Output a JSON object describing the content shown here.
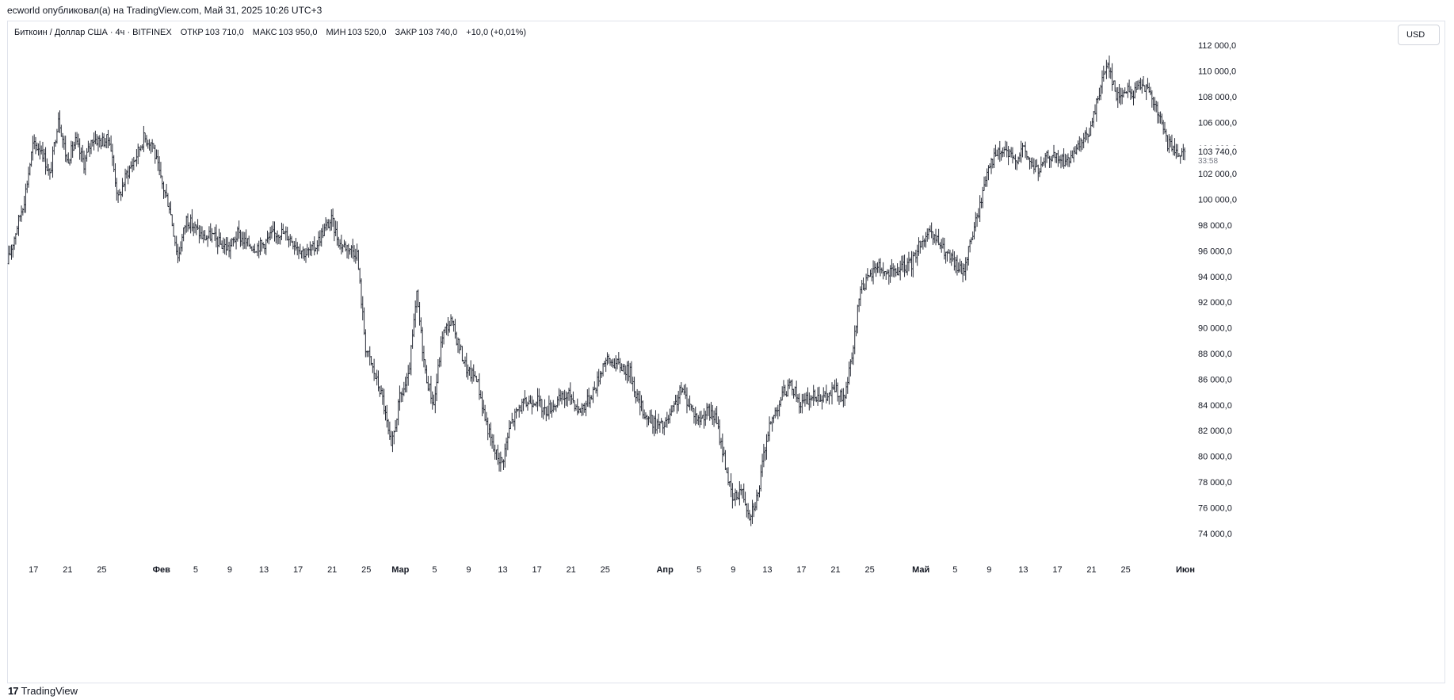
{
  "header": {
    "publish_line": "ecworld опубликовал(а) на TradingView.com, Май 31, 2025 10:26 UTC+3"
  },
  "legend": {
    "symbol": "Биткоин / Доллар США · 4ч · BITFINEX",
    "open_label": "ОТКР",
    "open_value": "103 710,0",
    "high_label": "МАКС",
    "high_value": "103 950,0",
    "low_label": "МИН",
    "low_value": "103 520,0",
    "close_label": "ЗАКР",
    "close_value": "103 740,0",
    "change": "+10,0 (+0,01%)"
  },
  "currency_button": "USD",
  "price_label": {
    "value": "103 740,0",
    "countdown": "33:58"
  },
  "footer": {
    "logo": "17",
    "brand": "TradingView"
  },
  "colors": {
    "bars": "#2a2e39",
    "grid": "#ffffff",
    "text": "#131722",
    "border": "#e0e3eb"
  },
  "chart_data": {
    "type": "ohlc_bar",
    "title": "Биткоин / Доллар США · 4ч · BITFINEX",
    "ylim": [
      73000,
      113000
    ],
    "y_ticks": [
      74000,
      76000,
      78000,
      80000,
      82000,
      84000,
      86000,
      88000,
      90000,
      92000,
      94000,
      96000,
      98000,
      100000,
      102000,
      104000,
      106000,
      108000,
      110000,
      112000
    ],
    "y_tick_labels": [
      "74 000,0",
      "76 000,0",
      "78 000,0",
      "80 000,0",
      "82 000,0",
      "84 000,0",
      "86 000,0",
      "88 000,0",
      "90 000,0",
      "92 000,0",
      "94 000,0",
      "96 000,0",
      "98 000,0",
      "100 000,0",
      "102 000,0",
      "104 000,0",
      "106 000,0",
      "108 000,0",
      "110 000,0",
      "112 000,0"
    ],
    "x_start_date": "2025-01-14",
    "x_ticks": [
      {
        "date": "2025-01-17",
        "label": "17"
      },
      {
        "date": "2025-01-21",
        "label": "21"
      },
      {
        "date": "2025-01-25",
        "label": "25"
      },
      {
        "date": "2025-02-01",
        "label": "Фев"
      },
      {
        "date": "2025-02-05",
        "label": "5"
      },
      {
        "date": "2025-02-09",
        "label": "9"
      },
      {
        "date": "2025-02-13",
        "label": "13"
      },
      {
        "date": "2025-02-17",
        "label": "17"
      },
      {
        "date": "2025-02-21",
        "label": "21"
      },
      {
        "date": "2025-02-25",
        "label": "25"
      },
      {
        "date": "2025-03-01",
        "label": "Мар"
      },
      {
        "date": "2025-03-05",
        "label": "5"
      },
      {
        "date": "2025-03-09",
        "label": "9"
      },
      {
        "date": "2025-03-13",
        "label": "13"
      },
      {
        "date": "2025-03-17",
        "label": "17"
      },
      {
        "date": "2025-03-21",
        "label": "21"
      },
      {
        "date": "2025-03-25",
        "label": "25"
      },
      {
        "date": "2025-04-01",
        "label": "Апр"
      },
      {
        "date": "2025-04-05",
        "label": "5"
      },
      {
        "date": "2025-04-09",
        "label": "9"
      },
      {
        "date": "2025-04-13",
        "label": "13"
      },
      {
        "date": "2025-04-17",
        "label": "17"
      },
      {
        "date": "2025-04-21",
        "label": "21"
      },
      {
        "date": "2025-04-25",
        "label": "25"
      },
      {
        "date": "2025-05-01",
        "label": "Май"
      },
      {
        "date": "2025-05-05",
        "label": "5"
      },
      {
        "date": "2025-05-09",
        "label": "9"
      },
      {
        "date": "2025-05-13",
        "label": "13"
      },
      {
        "date": "2025-05-17",
        "label": "17"
      },
      {
        "date": "2025-05-21",
        "label": "21"
      },
      {
        "date": "2025-05-25",
        "label": "25"
      },
      {
        "date": "2025-06-01",
        "label": "Июн"
      }
    ],
    "price_path": [
      {
        "date": "2025-01-14",
        "price": 95000
      },
      {
        "date": "2025-01-15",
        "price": 97500
      },
      {
        "date": "2025-01-16",
        "price": 100000
      },
      {
        "date": "2025-01-17",
        "price": 104200
      },
      {
        "date": "2025-01-18",
        "price": 104000
      },
      {
        "date": "2025-01-19",
        "price": 101800
      },
      {
        "date": "2025-01-20",
        "price": 106500
      },
      {
        "date": "2025-01-21",
        "price": 103000
      },
      {
        "date": "2025-01-22",
        "price": 104500
      },
      {
        "date": "2025-01-23",
        "price": 102800
      },
      {
        "date": "2025-01-24",
        "price": 104800
      },
      {
        "date": "2025-01-25",
        "price": 104500
      },
      {
        "date": "2025-01-26",
        "price": 104700
      },
      {
        "date": "2025-01-27",
        "price": 100000
      },
      {
        "date": "2025-01-28",
        "price": 102000
      },
      {
        "date": "2025-01-29",
        "price": 103200
      },
      {
        "date": "2025-01-30",
        "price": 104800
      },
      {
        "date": "2025-01-31",
        "price": 104400
      },
      {
        "date": "2025-02-01",
        "price": 101500
      },
      {
        "date": "2025-02-02",
        "price": 99500
      },
      {
        "date": "2025-02-03",
        "price": 95500
      },
      {
        "date": "2025-02-04",
        "price": 98500
      },
      {
        "date": "2025-02-05",
        "price": 97800
      },
      {
        "date": "2025-02-06",
        "price": 97000
      },
      {
        "date": "2025-02-07",
        "price": 97200
      },
      {
        "date": "2025-02-08",
        "price": 96500
      },
      {
        "date": "2025-02-09",
        "price": 96200
      },
      {
        "date": "2025-02-10",
        "price": 97300
      },
      {
        "date": "2025-02-11",
        "price": 96600
      },
      {
        "date": "2025-02-12",
        "price": 96300
      },
      {
        "date": "2025-02-13",
        "price": 96500
      },
      {
        "date": "2025-02-14",
        "price": 97200
      },
      {
        "date": "2025-02-15",
        "price": 97500
      },
      {
        "date": "2025-02-16",
        "price": 97100
      },
      {
        "date": "2025-02-17",
        "price": 96400
      },
      {
        "date": "2025-02-18",
        "price": 95800
      },
      {
        "date": "2025-02-19",
        "price": 96200
      },
      {
        "date": "2025-02-20",
        "price": 97500
      },
      {
        "date": "2025-02-21",
        "price": 98400
      },
      {
        "date": "2025-02-22",
        "price": 96500
      },
      {
        "date": "2025-02-23",
        "price": 96300
      },
      {
        "date": "2025-02-24",
        "price": 95800
      },
      {
        "date": "2025-02-25",
        "price": 88500
      },
      {
        "date": "2025-02-26",
        "price": 86500
      },
      {
        "date": "2025-02-27",
        "price": 84500
      },
      {
        "date": "2025-02-28",
        "price": 80500
      },
      {
        "date": "2025-03-01",
        "price": 84500
      },
      {
        "date": "2025-03-02",
        "price": 86000
      },
      {
        "date": "2025-03-03",
        "price": 92500
      },
      {
        "date": "2025-03-04",
        "price": 86500
      },
      {
        "date": "2025-03-05",
        "price": 84000
      },
      {
        "date": "2025-03-06",
        "price": 89500
      },
      {
        "date": "2025-03-07",
        "price": 90500
      },
      {
        "date": "2025-03-08",
        "price": 88500
      },
      {
        "date": "2025-03-09",
        "price": 86500
      },
      {
        "date": "2025-03-10",
        "price": 86200
      },
      {
        "date": "2025-03-11",
        "price": 83000
      },
      {
        "date": "2025-03-12",
        "price": 80500
      },
      {
        "date": "2025-03-13",
        "price": 79500
      },
      {
        "date": "2025-03-14",
        "price": 82500
      },
      {
        "date": "2025-03-15",
        "price": 83800
      },
      {
        "date": "2025-03-16",
        "price": 84200
      },
      {
        "date": "2025-03-17",
        "price": 84500
      },
      {
        "date": "2025-03-18",
        "price": 83500
      },
      {
        "date": "2025-03-19",
        "price": 84000
      },
      {
        "date": "2025-03-20",
        "price": 84500
      },
      {
        "date": "2025-03-21",
        "price": 84800
      },
      {
        "date": "2025-03-22",
        "price": 83500
      },
      {
        "date": "2025-03-23",
        "price": 84300
      },
      {
        "date": "2025-03-24",
        "price": 85500
      },
      {
        "date": "2025-03-25",
        "price": 87500
      },
      {
        "date": "2025-03-26",
        "price": 87300
      },
      {
        "date": "2025-03-27",
        "price": 87000
      },
      {
        "date": "2025-03-28",
        "price": 86500
      },
      {
        "date": "2025-03-29",
        "price": 84200
      },
      {
        "date": "2025-03-30",
        "price": 83000
      },
      {
        "date": "2025-03-31",
        "price": 82500
      },
      {
        "date": "2025-04-01",
        "price": 82300
      },
      {
        "date": "2025-04-02",
        "price": 83500
      },
      {
        "date": "2025-04-03",
        "price": 85200
      },
      {
        "date": "2025-04-04",
        "price": 84000
      },
      {
        "date": "2025-04-05",
        "price": 82800
      },
      {
        "date": "2025-04-06",
        "price": 83500
      },
      {
        "date": "2025-04-07",
        "price": 83000
      },
      {
        "date": "2025-04-08",
        "price": 80000
      },
      {
        "date": "2025-04-09",
        "price": 76500
      },
      {
        "date": "2025-04-10",
        "price": 77500
      },
      {
        "date": "2025-04-11",
        "price": 75500
      },
      {
        "date": "2025-04-12",
        "price": 77000
      },
      {
        "date": "2025-04-13",
        "price": 81500
      },
      {
        "date": "2025-04-14",
        "price": 83500
      },
      {
        "date": "2025-04-15",
        "price": 85000
      },
      {
        "date": "2025-04-16",
        "price": 85500
      },
      {
        "date": "2025-04-17",
        "price": 84000
      },
      {
        "date": "2025-04-18",
        "price": 84500
      },
      {
        "date": "2025-04-19",
        "price": 84800
      },
      {
        "date": "2025-04-20",
        "price": 84500
      },
      {
        "date": "2025-04-21",
        "price": 85300
      },
      {
        "date": "2025-04-22",
        "price": 84300
      },
      {
        "date": "2025-04-23",
        "price": 87500
      },
      {
        "date": "2025-04-24",
        "price": 93200
      },
      {
        "date": "2025-04-25",
        "price": 93800
      },
      {
        "date": "2025-04-26",
        "price": 95000
      },
      {
        "date": "2025-04-27",
        "price": 94200
      },
      {
        "date": "2025-04-28",
        "price": 94300
      },
      {
        "date": "2025-04-29",
        "price": 94700
      },
      {
        "date": "2025-04-30",
        "price": 95000
      },
      {
        "date": "2025-05-01",
        "price": 96700
      },
      {
        "date": "2025-05-02",
        "price": 97200
      },
      {
        "date": "2025-05-03",
        "price": 96800
      },
      {
        "date": "2025-05-04",
        "price": 95800
      },
      {
        "date": "2025-05-05",
        "price": 95000
      },
      {
        "date": "2025-05-06",
        "price": 94300
      },
      {
        "date": "2025-05-07",
        "price": 97000
      },
      {
        "date": "2025-05-08",
        "price": 99500
      },
      {
        "date": "2025-05-09",
        "price": 102800
      },
      {
        "date": "2025-05-10",
        "price": 103500
      },
      {
        "date": "2025-05-11",
        "price": 103800
      },
      {
        "date": "2025-05-12",
        "price": 103000
      },
      {
        "date": "2025-05-13",
        "price": 104000
      },
      {
        "date": "2025-05-14",
        "price": 102800
      },
      {
        "date": "2025-05-15",
        "price": 102200
      },
      {
        "date": "2025-05-16",
        "price": 103500
      },
      {
        "date": "2025-05-17",
        "price": 103200
      },
      {
        "date": "2025-05-18",
        "price": 103000
      },
      {
        "date": "2025-05-19",
        "price": 103300
      },
      {
        "date": "2025-05-20",
        "price": 104500
      },
      {
        "date": "2025-05-21",
        "price": 105500
      },
      {
        "date": "2025-05-22",
        "price": 108500
      },
      {
        "date": "2025-05-23",
        "price": 110800
      },
      {
        "date": "2025-05-24",
        "price": 108000
      },
      {
        "date": "2025-05-25",
        "price": 108500
      },
      {
        "date": "2025-05-26",
        "price": 108200
      },
      {
        "date": "2025-05-27",
        "price": 109300
      },
      {
        "date": "2025-05-28",
        "price": 108000
      },
      {
        "date": "2025-05-29",
        "price": 106500
      },
      {
        "date": "2025-05-30",
        "price": 104300
      },
      {
        "date": "2025-05-31",
        "price": 103740
      }
    ],
    "last_price": 103740
  }
}
